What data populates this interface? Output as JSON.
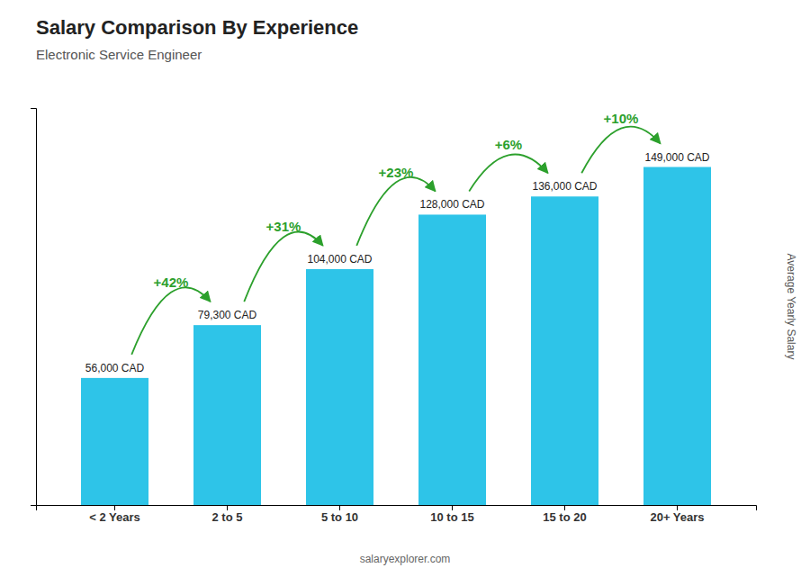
{
  "chart_data": {
    "type": "bar",
    "title": "Salary Comparison By Experience",
    "subtitle": "Electronic Service Engineer",
    "ylabel": "Average Yearly Salary",
    "source": "salaryexplorer.com",
    "categories": [
      "< 2 Years",
      "2 to 5",
      "5 to 10",
      "10 to 15",
      "15 to 20",
      "20+ Years"
    ],
    "values": [
      56000,
      79300,
      104000,
      128000,
      136000,
      149000
    ],
    "value_labels": [
      "56,000 CAD",
      "79,300 CAD",
      "104,000 CAD",
      "128,000 CAD",
      "136,000 CAD",
      "149,000 CAD"
    ],
    "data_labels": true,
    "annotations": [
      "+42%",
      "+31%",
      "+23%",
      "+6%",
      "+10%"
    ],
    "color": "#2ec4e8",
    "ylim": [
      0,
      175000
    ],
    "tick_labels": "x",
    "grid": false
  }
}
